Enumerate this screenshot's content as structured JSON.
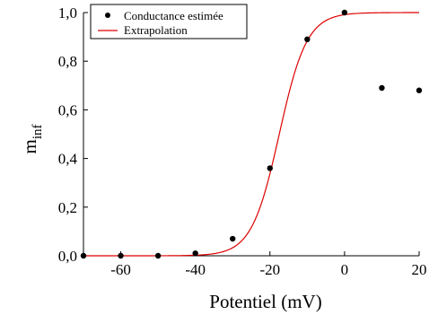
{
  "chart_data": {
    "type": "scatter",
    "title": "",
    "xlabel": "Potentiel (mV)",
    "ylabel_main": "m",
    "ylabel_sub": "inf",
    "xlim": [
      -70,
      20
    ],
    "ylim": [
      0,
      1.0
    ],
    "x_ticks": [
      -60,
      -40,
      -20,
      0,
      20
    ],
    "x_tick_labels": [
      "-60",
      "-40",
      "-20",
      "0",
      "20"
    ],
    "y_ticks": [
      0,
      0.2,
      0.4,
      0.6,
      0.8,
      1.0
    ],
    "y_tick_labels": [
      "0,0",
      "0,2",
      "0,4",
      "0,6",
      "0,8",
      "1,0"
    ],
    "legend_position": "top-left",
    "grid": false,
    "series": [
      {
        "name": "Conductance estimée",
        "kind": "points",
        "color": "#000000",
        "x": [
          -70,
          -60,
          -50,
          -40,
          -30,
          -20,
          -10,
          0,
          10,
          20
        ],
        "y": [
          0.0,
          0.0,
          0.0,
          0.01,
          0.07,
          0.36,
          0.89,
          1.0,
          0.69,
          0.68
        ]
      },
      {
        "name": "Extrapolation",
        "kind": "boltzmann-curve",
        "color": "#dd0000",
        "v_half": -17.5,
        "slope": 3.7,
        "x_range": [
          -70,
          20
        ]
      }
    ]
  }
}
